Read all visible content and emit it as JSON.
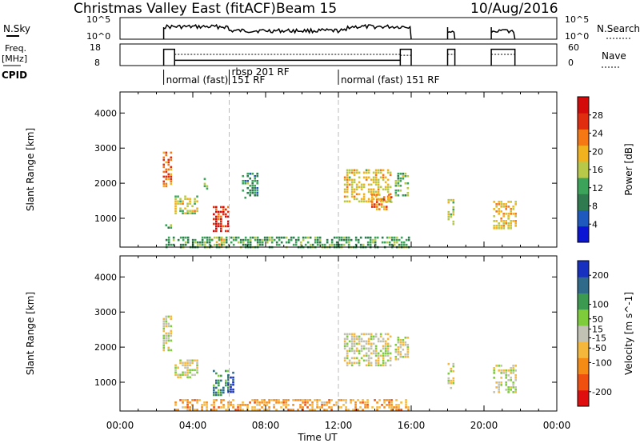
{
  "header": {
    "station": "Christmas Valley East (fitACF)",
    "beam": "Beam 15",
    "date": "10/Aug/2016"
  },
  "time_axis": {
    "label": "Time UT",
    "range_hours": [
      0,
      24
    ],
    "tick_hours": [
      0,
      4,
      8,
      12,
      16,
      20,
      24
    ],
    "tick_labels": [
      "00:00",
      "04:00",
      "08:00",
      "12:00",
      "16:00",
      "20:00",
      "00:00"
    ]
  },
  "nsky_panel": {
    "left_label": "N.Sky",
    "left_ticks": [
      "10^5",
      "10^0"
    ],
    "right_label": "N.Search",
    "right_ticks": [
      "10^5",
      "10^0"
    ],
    "active_intervals": [
      [
        2.4,
        16.0
      ],
      [
        18.0,
        18.4
      ],
      [
        20.4,
        21.7
      ]
    ]
  },
  "freq_panel": {
    "left_label_line1": "Freq.",
    "left_label_line2": "[MHz]",
    "left_ticks": [
      "18",
      "8"
    ],
    "right_label": "Nave",
    "right_ticks": [
      "60",
      "0"
    ],
    "freq_intervals": [
      [
        2.4,
        3.0,
        16
      ],
      [
        3.0,
        15.4,
        10
      ],
      [
        15.4,
        16.0,
        16
      ],
      [
        18.0,
        18.4,
        16
      ],
      [
        20.4,
        21.7,
        16
      ]
    ],
    "nave_intervals": [
      [
        3.0,
        15.4,
        12
      ],
      [
        15.4,
        16.0,
        11
      ],
      [
        18.0,
        18.4,
        12
      ],
      [
        20.4,
        21.7,
        12
      ]
    ]
  },
  "cpid": {
    "label": "CPID",
    "segments": [
      {
        "start_hour": 2.4,
        "line1": "normal (fast)",
        "line2": ""
      },
      {
        "start_hour": 6.0,
        "line1": "rbsp 201 RF",
        "line2": "151 RF"
      },
      {
        "start_hour": 12.0,
        "line1": "normal (fast) 151 RF",
        "line2": ""
      }
    ]
  },
  "chart_data": [
    {
      "type": "heatmap",
      "title": "",
      "xlabel": "Time UT",
      "ylabel": "Slant Range [km]",
      "xlim_hours": [
        0,
        24
      ],
      "ylim_km": [
        180,
        4600
      ],
      "y_ticks": [
        1000,
        2000,
        3000,
        4000
      ],
      "colorbar": {
        "label": "Power [dB]",
        "range": [
          0,
          32
        ],
        "ticks": [
          4,
          8,
          12,
          16,
          20,
          24,
          28
        ],
        "colors": [
          "#0a14d2",
          "#1e5abe",
          "#2f7a4f",
          "#3ca35a",
          "#b8c94a",
          "#f0b21e",
          "#f57814",
          "#e02d0f",
          "#d40a0a"
        ]
      },
      "patches": [
        {
          "t": [
            2.35,
            2.8
          ],
          "r": [
            1900,
            2900
          ],
          "level": 0.78
        },
        {
          "t": [
            2.35,
            2.8
          ],
          "r": [
            750,
            900
          ],
          "level": 0.35
        },
        {
          "t": [
            3.0,
            4.2
          ],
          "r": [
            1150,
            1650
          ],
          "level": 0.55
        },
        {
          "t": [
            4.6,
            4.8
          ],
          "r": [
            1800,
            2150
          ],
          "level": 0.4
        },
        {
          "t": [
            5.1,
            5.9
          ],
          "r": [
            600,
            1350
          ],
          "level": 0.9
        },
        {
          "t": [
            5.0,
            5.9
          ],
          "r": [
            190,
            420
          ],
          "level": 0.62
        },
        {
          "t": [
            6.7,
            7.6
          ],
          "r": [
            1550,
            2300
          ],
          "level": 0.3
        },
        {
          "t": [
            12.3,
            14.9
          ],
          "r": [
            1450,
            2400
          ],
          "level": 0.58
        },
        {
          "t": [
            13.8,
            14.9
          ],
          "r": [
            1250,
            1700
          ],
          "level": 0.7
        },
        {
          "t": [
            15.1,
            15.8
          ],
          "r": [
            1650,
            2300
          ],
          "level": 0.42
        },
        {
          "t": [
            2.5,
            15.9
          ],
          "r": [
            190,
            480
          ],
          "level": 0.35
        },
        {
          "t": [
            18.0,
            18.3
          ],
          "r": [
            850,
            1550
          ],
          "level": 0.5
        },
        {
          "t": [
            20.5,
            21.8
          ],
          "r": [
            700,
            1500
          ],
          "level": 0.62
        }
      ]
    },
    {
      "type": "heatmap",
      "title": "",
      "xlabel": "Time UT",
      "ylabel": "Slant Range [km]",
      "xlim_hours": [
        0,
        24
      ],
      "ylim_km": [
        180,
        4600
      ],
      "y_ticks": [
        1000,
        2000,
        3000,
        4000
      ],
      "colorbar": {
        "label": "Velocity [m s^-1]",
        "range": [
          -250,
          250
        ],
        "ticks": [
          200,
          100,
          50,
          15,
          -15,
          -50,
          -100,
          -200
        ],
        "colors": [
          "#e00f0f",
          "#ef5010",
          "#f58a14",
          "#f5b83c",
          "#c2c2b4",
          "#7ecb3c",
          "#3b9a4f",
          "#2f6a8a",
          "#1830c0"
        ]
      },
      "patches": [
        {
          "t": [
            2.35,
            2.8
          ],
          "r": [
            1900,
            2900
          ],
          "level": 0.5
        },
        {
          "t": [
            3.0,
            4.2
          ],
          "r": [
            1150,
            1650
          ],
          "level": 0.5
        },
        {
          "t": [
            5.1,
            5.9
          ],
          "r": [
            600,
            1350
          ],
          "level": 0.78
        },
        {
          "t": [
            5.9,
            6.2
          ],
          "r": [
            700,
            1300
          ],
          "level": 0.92
        },
        {
          "t": [
            12.3,
            14.9
          ],
          "r": [
            1450,
            2400
          ],
          "level": 0.5
        },
        {
          "t": [
            15.1,
            15.8
          ],
          "r": [
            1650,
            2300
          ],
          "level": 0.5
        },
        {
          "t": [
            3.0,
            15.9
          ],
          "r": [
            190,
            520
          ],
          "level": 0.3
        },
        {
          "t": [
            18.0,
            18.3
          ],
          "r": [
            850,
            1550
          ],
          "level": 0.5
        },
        {
          "t": [
            20.5,
            21.8
          ],
          "r": [
            700,
            1500
          ],
          "level": 0.5
        }
      ]
    }
  ]
}
